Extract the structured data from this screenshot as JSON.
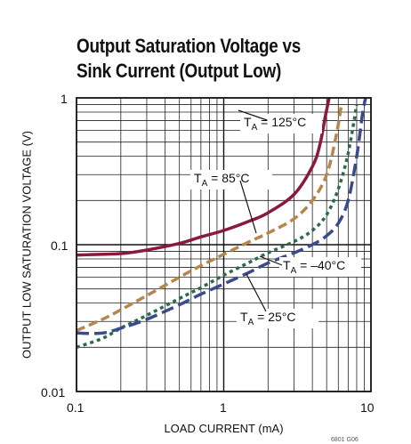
{
  "chart_data": {
    "type": "line",
    "title": "Output Saturation Voltage vs Sink Current (Output Low)",
    "title_lines": [
      "Output Saturation Voltage vs",
      "Sink Current (Output Low)"
    ],
    "xlabel": "LOAD CURRENT (mA)",
    "ylabel": "OUTPUT LOW SATURATION VOLTAGE (V)",
    "x_scale": "log",
    "y_scale": "log",
    "xlim": [
      0.1,
      10
    ],
    "ylim": [
      0.01,
      1
    ],
    "x_ticks": [
      "0.1",
      "1",
      "10"
    ],
    "y_ticks": [
      "1",
      "0.1",
      "0.01"
    ],
    "grid": true,
    "series": [
      {
        "name": "TA = 125°C",
        "label_main": "T",
        "label_sub": "A",
        "label_rest": " = 125°C",
        "color": "#8b1a3a",
        "dash": "solid",
        "points": [
          [
            0.1,
            0.085
          ],
          [
            0.2,
            0.087
          ],
          [
            0.3,
            0.092
          ],
          [
            0.5,
            0.102
          ],
          [
            0.7,
            0.113
          ],
          [
            1.0,
            0.125
          ],
          [
            1.5,
            0.145
          ],
          [
            2.0,
            0.165
          ],
          [
            3.0,
            0.22
          ],
          [
            4.0,
            0.34
          ],
          [
            4.5,
            0.48
          ],
          [
            4.9,
            0.75
          ],
          [
            5.2,
            1.0
          ]
        ]
      },
      {
        "name": "TA = 85°C",
        "label_main": "T",
        "label_sub": "A",
        "label_rest": " = 85°C",
        "color": "#b8864a",
        "dash": "dash",
        "points": [
          [
            0.1,
            0.026
          ],
          [
            0.15,
            0.031
          ],
          [
            0.2,
            0.036
          ],
          [
            0.3,
            0.045
          ],
          [
            0.5,
            0.06
          ],
          [
            0.7,
            0.072
          ],
          [
            1.0,
            0.086
          ],
          [
            1.5,
            0.105
          ],
          [
            2.0,
            0.12
          ],
          [
            3.0,
            0.15
          ],
          [
            4.0,
            0.2
          ],
          [
            5.0,
            0.3
          ],
          [
            5.8,
            0.55
          ],
          [
            6.3,
            0.9
          ]
        ]
      },
      {
        "name": "TA = 25°C",
        "label_main": "T",
        "label_sub": "A",
        "label_rest": " = 25°C",
        "color": "#2d6a4a",
        "dash": "dot",
        "points": [
          [
            0.1,
            0.02
          ],
          [
            0.15,
            0.023
          ],
          [
            0.2,
            0.027
          ],
          [
            0.3,
            0.033
          ],
          [
            0.5,
            0.043
          ],
          [
            0.7,
            0.051
          ],
          [
            1.0,
            0.062
          ],
          [
            1.5,
            0.076
          ],
          [
            2.0,
            0.088
          ],
          [
            3.0,
            0.105
          ],
          [
            4.0,
            0.125
          ],
          [
            5.0,
            0.16
          ],
          [
            6.0,
            0.24
          ],
          [
            7.0,
            0.42
          ],
          [
            8.0,
            0.9
          ]
        ]
      },
      {
        "name": "TA = –40°C",
        "label_main": "T",
        "label_sub": "A",
        "label_rest": " = –40°C",
        "color": "#3a4a8c",
        "dash": "longdash",
        "points": [
          [
            0.1,
            0.025
          ],
          [
            0.15,
            0.025
          ],
          [
            0.2,
            0.027
          ],
          [
            0.3,
            0.031
          ],
          [
            0.5,
            0.039
          ],
          [
            0.7,
            0.046
          ],
          [
            1.0,
            0.054
          ],
          [
            1.5,
            0.065
          ],
          [
            2.0,
            0.075
          ],
          [
            3.0,
            0.088
          ],
          [
            4.0,
            0.1
          ],
          [
            5.0,
            0.115
          ],
          [
            6.0,
            0.14
          ],
          [
            7.0,
            0.2
          ],
          [
            8.0,
            0.4
          ],
          [
            8.8,
            0.8
          ],
          [
            9.2,
            1.0
          ]
        ]
      }
    ]
  },
  "figure_code": "6801 G06"
}
